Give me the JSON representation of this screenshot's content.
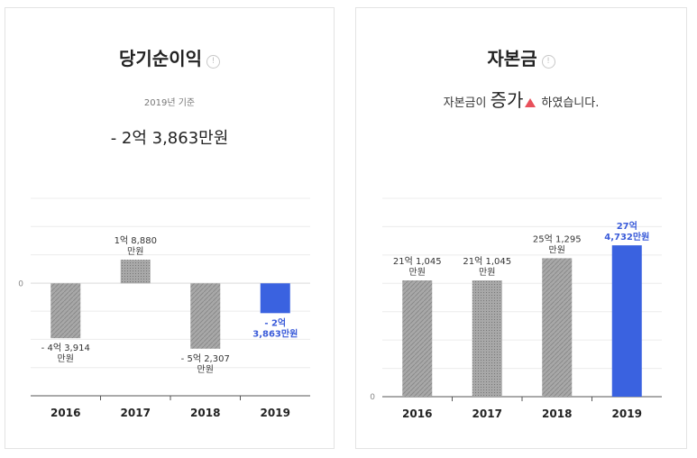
{
  "colors": {
    "bar_gray": "#a8a8a8",
    "bar_highlight": "#3a62e0",
    "label_highlight": "#3a5bd9",
    "up_arrow": "#e8505b"
  },
  "left": {
    "title": "당기순이익",
    "info_icon": "info-circle-icon",
    "basis": "2019년 기준",
    "value_text": "- 2억 3,863만원"
  },
  "right": {
    "title": "자본금",
    "info_icon": "info-circle-icon",
    "msg_prefix": "자본금이",
    "msg_big": "증가",
    "msg_suffix": "하였습니다.",
    "trend_icon": "up-triangle-icon"
  },
  "chart_data": [
    {
      "type": "bar",
      "categories": [
        "2016",
        "2017",
        "2018",
        "2019"
      ],
      "values": [
        -439140000,
        188800000,
        -523070000,
        -238630000
      ],
      "value_labels": [
        [
          "- 4억 3,914",
          "만원"
        ],
        [
          "1억 8,880",
          "만원"
        ],
        [
          "- 5억 2,307",
          "만원"
        ],
        [
          "- 2억",
          "3,863만원"
        ]
      ],
      "highlight_index": 3,
      "zero_label": "0",
      "ylim": [
        -900000000,
        680000000
      ]
    },
    {
      "type": "bar",
      "categories": [
        "2016",
        "2017",
        "2018",
        "2019"
      ],
      "values": [
        2110450000,
        2110450000,
        2512950000,
        2747320000
      ],
      "value_labels": [
        [
          "21억 1,045",
          "만원"
        ],
        [
          "21억 1,045",
          "만원"
        ],
        [
          "25억 1,295",
          "만원"
        ],
        [
          "27억",
          "4,732만원"
        ]
      ],
      "highlight_index": 3,
      "zero_label": "0",
      "ylim": [
        0,
        3600000000
      ]
    }
  ]
}
